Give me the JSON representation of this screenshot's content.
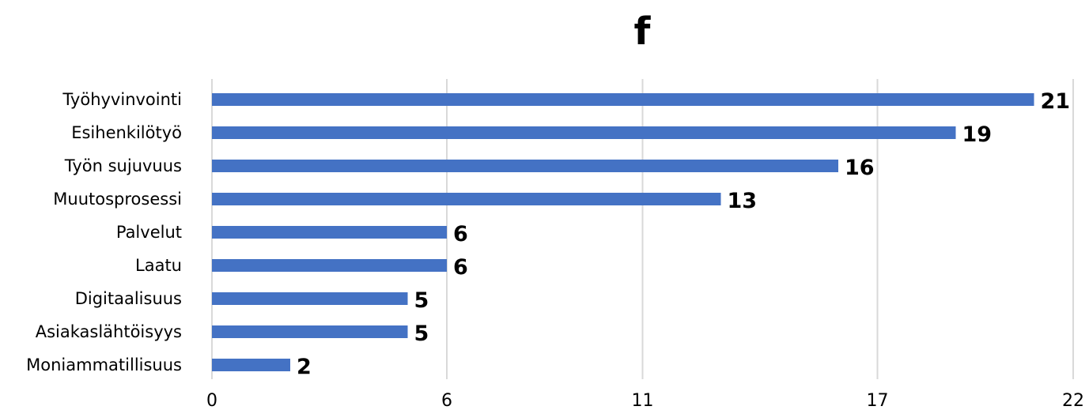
{
  "chart_data": {
    "type": "bar",
    "orientation": "horizontal",
    "title": "f",
    "categories": [
      "Työhyvinvointi",
      "Esihenkilötyö",
      "Työn sujuvuus",
      "Muutosprosessi",
      "Palvelut",
      "Laatu",
      "Digitaalisuus",
      "Asiakaslähtöisyys",
      "Moniammatillisuus"
    ],
    "values": [
      21,
      19,
      16,
      13,
      6,
      6,
      5,
      5,
      2
    ],
    "value_labels": [
      "21",
      "19",
      "16",
      "13",
      "6",
      "6",
      "5",
      "5",
      "2"
    ],
    "xlim": [
      0,
      22
    ],
    "xticks": [
      0,
      6,
      11,
      17,
      22
    ],
    "xtick_labels": [
      "0",
      "6",
      "11",
      "17",
      "22"
    ],
    "grid": true,
    "legend": "none",
    "bar_color": "#4472c4",
    "grid_color": "#d9d9d9"
  }
}
